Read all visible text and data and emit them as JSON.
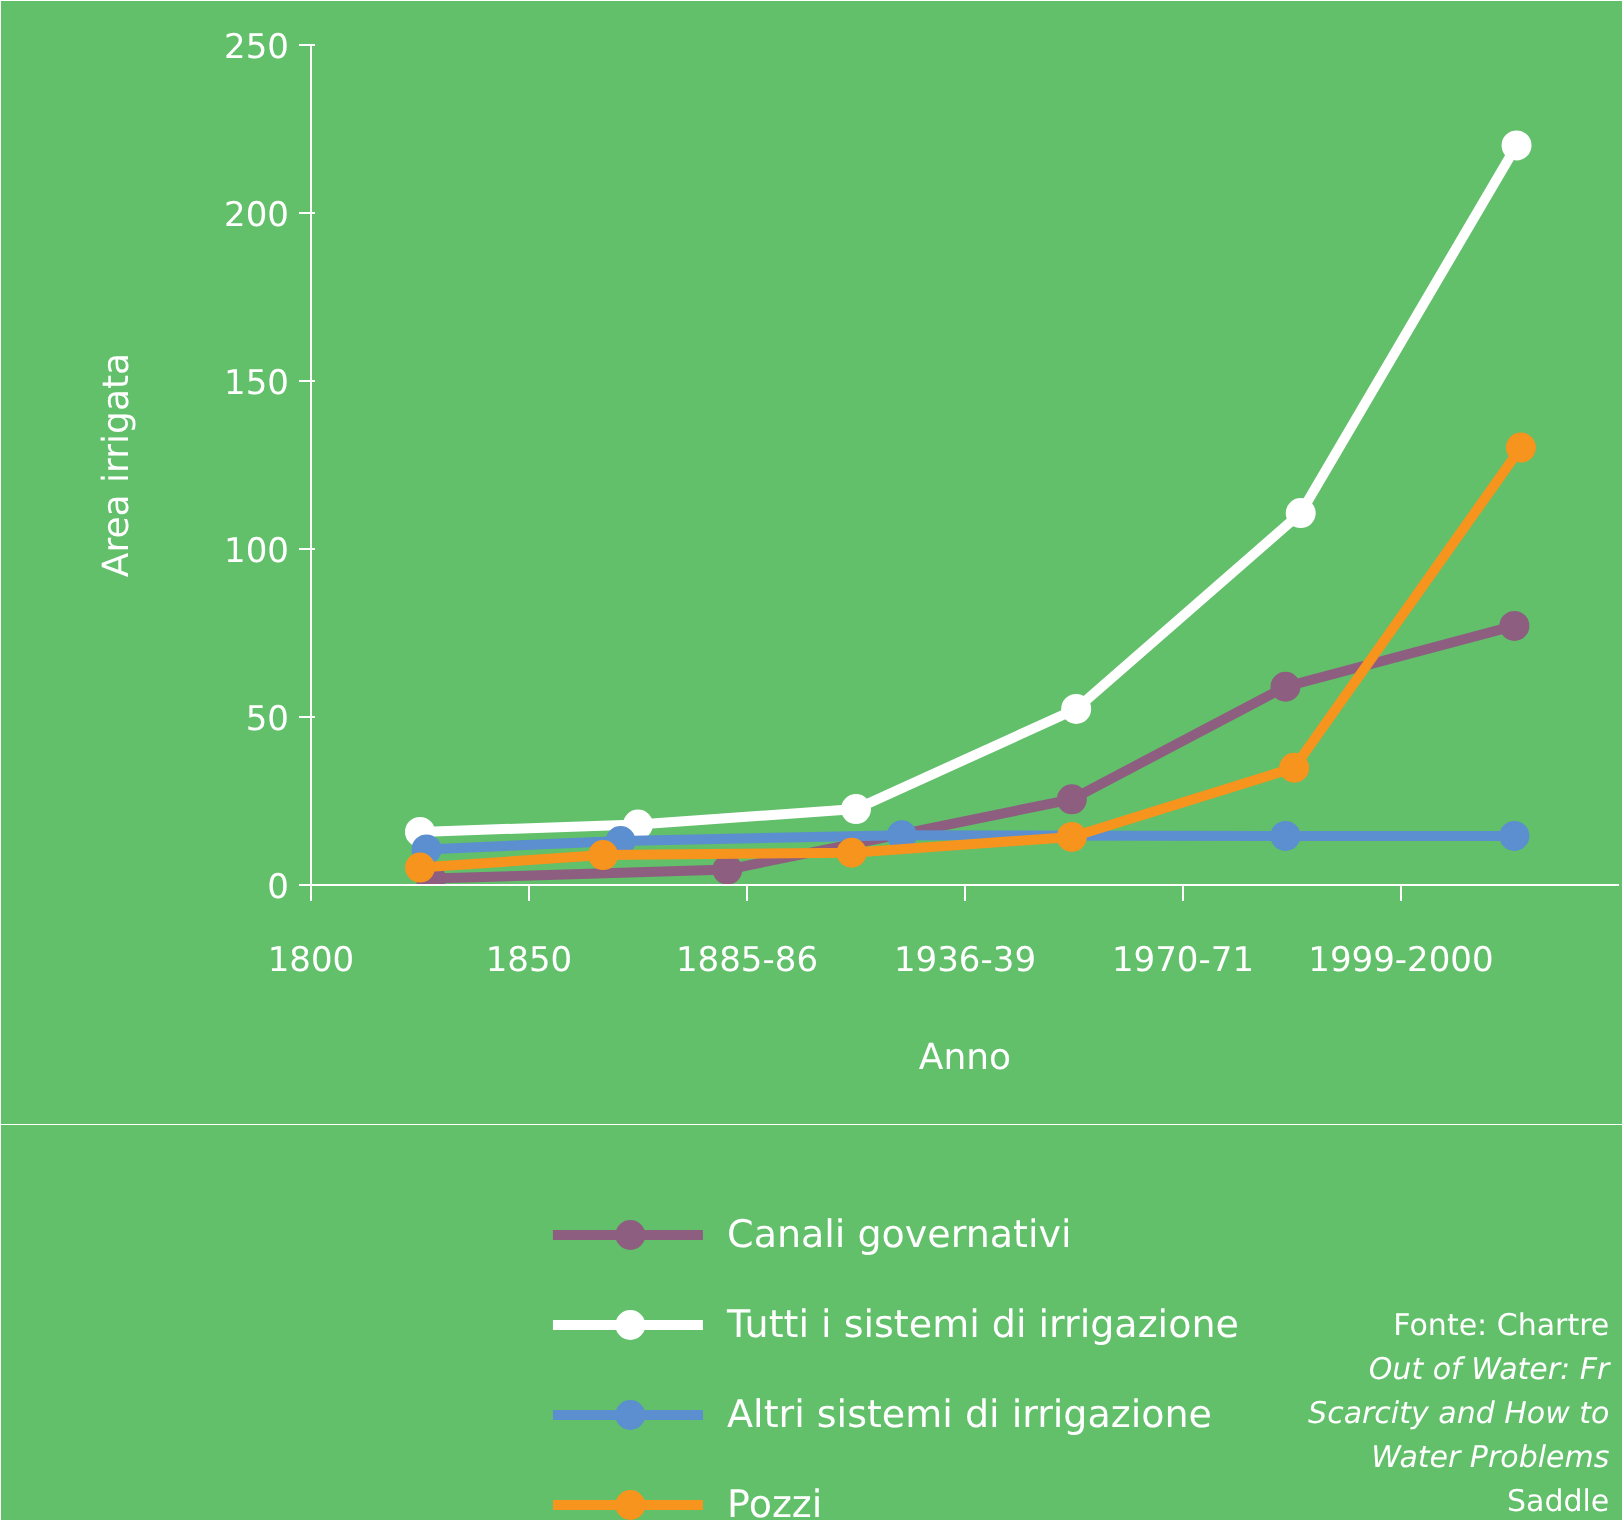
{
  "chart_data": {
    "type": "line",
    "xlabel": "Anno",
    "ylabel": "Area irrigata",
    "xlim": [
      1800,
      2100
    ],
    "xticks": [
      1800,
      1850,
      {
        "value": 1900,
        "label": "1885-86"
      },
      {
        "value": 1950,
        "label": "1936-39"
      },
      {
        "value": 2000,
        "label": "1970-71"
      },
      {
        "value": 2050,
        "label": "1999-2000"
      }
    ],
    "ylim": [
      0,
      250
    ],
    "yticks": [
      0,
      50,
      100,
      150,
      200,
      250
    ],
    "marker": "circle",
    "line_style": "solid",
    "legend": "bottom",
    "series": [
      {
        "name": "Canali governativi",
        "color": "#8e5e80",
        "x": [
          1827.5,
          1895.5,
          1974.5,
          2023.5,
          2076
        ],
        "values": [
          1.9,
          4.6,
          25.5,
          59,
          77.1
        ]
      },
      {
        "name": "Tutti i sistemi di irrigazione",
        "color": "#ffffff",
        "x": [
          1825,
          1875,
          1925,
          1975.5,
          2027,
          2076.5
        ],
        "values": [
          15.8,
          18.0,
          22.6,
          52.4,
          110.7,
          220.1
        ]
      },
      {
        "name": "Altri sistemi di irrigazione",
        "color": "#5b8fd0",
        "x": [
          1826.5,
          1871,
          1935.5,
          2023.5,
          2076
        ],
        "values": [
          10.6,
          13.1,
          14.8,
          14.6,
          14.6
        ]
      },
      {
        "name": "Pozzi",
        "color": "#f7941d",
        "x": [
          1825,
          1867,
          1924,
          1974.5,
          2025.5,
          2077.5
        ],
        "values": [
          5.2,
          8.9,
          9.6,
          14.3,
          34.9,
          130.2
        ]
      }
    ],
    "annotations": [
      "Fonte: Chartre",
      "Out of Water: Fr",
      "Scarcity and How to",
      "Water Problems",
      "Saddle"
    ]
  }
}
